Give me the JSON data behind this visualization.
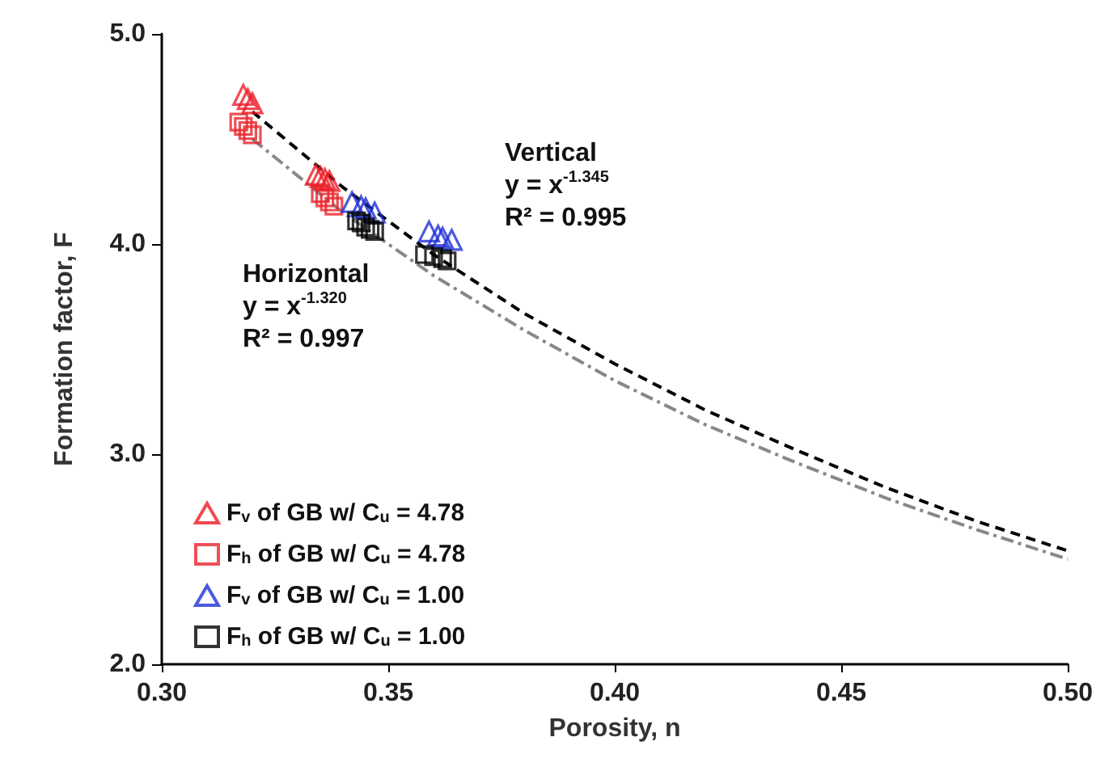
{
  "chart_data": {
    "type": "scatter",
    "xlabel": "Porosity, n",
    "ylabel": "Formation factor, F",
    "xlim": [
      0.3,
      0.5
    ],
    "xticks": [
      {
        "value": 0.3,
        "label": "0.30"
      },
      0.35,
      {
        "value": 0.4,
        "label": "0.40"
      },
      0.45,
      {
        "value": 0.5,
        "label": "0.50"
      }
    ],
    "ylim": [
      2.0,
      5.0
    ],
    "yticks": [
      {
        "value": 2,
        "label": "2.0"
      },
      {
        "value": 3,
        "label": "3.0"
      },
      {
        "value": 4,
        "label": "4.0"
      },
      {
        "value": 5,
        "label": "5.0"
      }
    ],
    "grid": false,
    "legend": "bottom left",
    "series": [
      {
        "name": "F$_{v}$ of GB w/ C$_{u}$ = 4.78",
        "color": "#ee1c25",
        "marker": "triangle",
        "x": [
          0.318,
          0.319,
          0.32,
          0.334,
          0.335,
          0.336,
          0.337
        ],
        "values": [
          4.71,
          4.69,
          4.67,
          4.33,
          4.32,
          4.31,
          4.3
        ]
      },
      {
        "name": "F$_{h}$ of GB w/ C$_{u}$ = 4.78",
        "color": "#e8232a",
        "marker": "square",
        "x": [
          0.317,
          0.318,
          0.319,
          0.32,
          0.335,
          0.336,
          0.337,
          0.338
        ],
        "values": [
          4.58,
          4.56,
          4.54,
          4.52,
          4.24,
          4.22,
          4.2,
          4.18
        ]
      },
      {
        "name": "F$_{v}$ of GB w/ C$_{u}$ = 1.00",
        "color": "#1f2fd6",
        "marker": "triangle",
        "x": [
          0.342,
          0.344,
          0.345,
          0.347,
          0.359,
          0.361,
          0.362,
          0.364
        ],
        "values": [
          4.2,
          4.18,
          4.17,
          4.15,
          4.06,
          4.04,
          4.03,
          4.02
        ]
      },
      {
        "name": "F$_{h}$ of GB w/ C$_{u}$ = 1.00",
        "color": "#000000",
        "marker": "square",
        "x": [
          0.343,
          0.344,
          0.345,
          0.346,
          0.347,
          0.358,
          0.36,
          0.362,
          0.363
        ],
        "values": [
          4.11,
          4.1,
          4.08,
          4.07,
          4.06,
          3.95,
          3.94,
          3.93,
          3.92
        ]
      },
      {
        "type": "line",
        "color": "#000000",
        "line_style": "dashed",
        "marker": "none",
        "x": [
          0.32,
          0.34,
          0.36,
          0.38,
          0.4,
          0.42,
          0.44,
          0.46,
          0.48,
          0.5
        ],
        "values": [
          4.63,
          4.27,
          3.95,
          3.67,
          3.43,
          3.21,
          3.02,
          2.84,
          2.68,
          2.54
        ]
      },
      {
        "type": "line",
        "color": "#888888",
        "line_style": "dotted",
        "marker": "none",
        "x": [
          0.32,
          0.34,
          0.36,
          0.38,
          0.4,
          0.42,
          0.44,
          0.46,
          0.48,
          0.5
        ],
        "values": [
          4.5,
          4.15,
          3.85,
          3.59,
          3.35,
          3.14,
          2.96,
          2.79,
          2.64,
          2.5
        ]
      }
    ],
    "annotations": [
      "Vertical\ny = x$^{-1.345}$\nR² = 0.995",
      "Horizontal\ny = x$^{-1.320}$\nR² = 0.997"
    ]
  }
}
